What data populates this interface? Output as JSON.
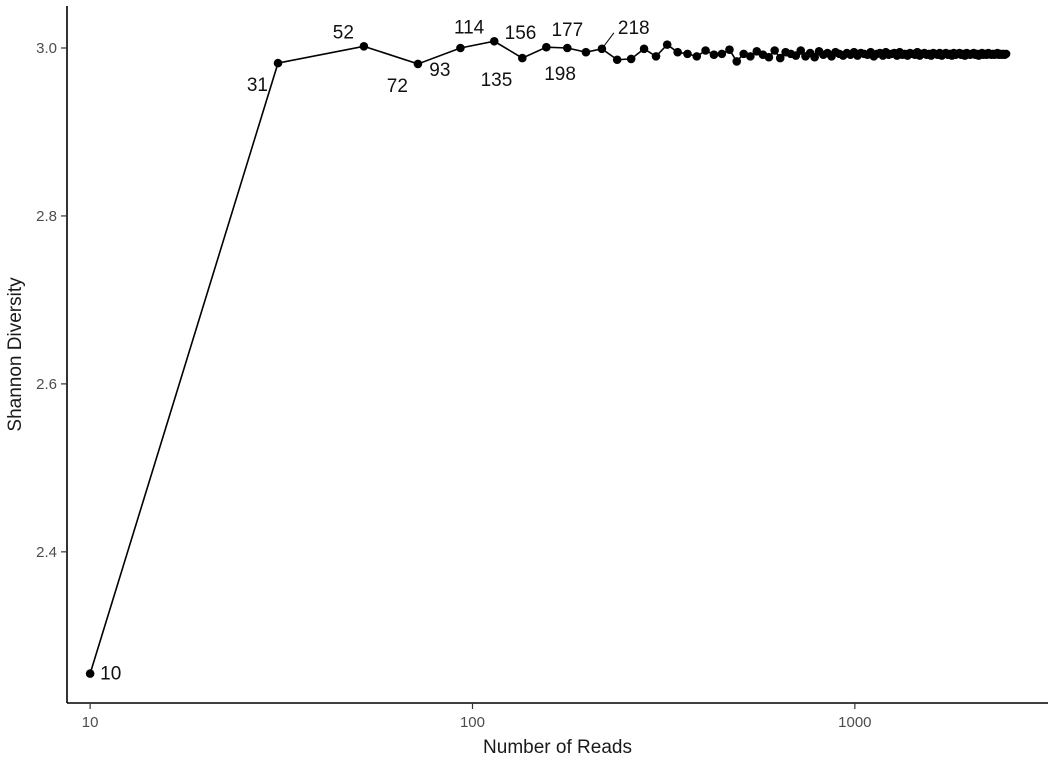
{
  "chart_data": {
    "type": "line",
    "title": "",
    "xlabel": "Number of Reads",
    "ylabel": "Shannon Diversity",
    "x_scale": "log",
    "xlim": [
      8.7,
      3200
    ],
    "ylim": [
      2.22,
      3.05
    ],
    "grid": false,
    "legend": "none",
    "x_ticks": [
      10,
      100,
      1000
    ],
    "x_tick_labels": [
      "10",
      "100",
      "1000"
    ],
    "y_ticks": [
      2.4,
      2.6,
      2.8,
      3.0
    ],
    "y_tick_labels": [
      "2.4",
      "2.6",
      "2.8",
      "3.0"
    ],
    "series": [
      {
        "x": [
          10,
          31,
          52,
          72,
          93,
          114,
          135,
          156,
          177,
          198,
          218,
          239,
          260,
          281,
          302,
          323,
          344,
          365,
          386,
          407,
          428,
          449,
          470,
          491,
          512,
          533,
          554,
          575,
          596,
          617,
          638,
          659,
          680,
          701,
          722,
          743,
          764,
          785,
          806,
          827,
          848,
          869,
          890,
          911,
          932,
          953,
          974,
          995,
          1016,
          1037,
          1058,
          1079,
          1100,
          1121,
          1142,
          1163,
          1184,
          1205,
          1226,
          1247,
          1268,
          1289,
          1310,
          1331,
          1352,
          1373,
          1394,
          1415,
          1436,
          1457,
          1478,
          1499,
          1520,
          1541,
          1562,
          1583,
          1604,
          1625,
          1646,
          1667,
          1688,
          1709,
          1730,
          1751,
          1772,
          1793,
          1814,
          1835,
          1856,
          1877,
          1898,
          1919,
          1940,
          1961,
          1982,
          2003,
          2024,
          2045,
          2066,
          2087,
          2108,
          2129,
          2150,
          2171,
          2192,
          2213,
          2234,
          2255,
          2276,
          2297,
          2318,
          2339,
          2360,
          2381,
          2402,
          2423,
          2444,
          2465,
          2486
        ],
        "values": [
          2.255,
          2.982,
          3.002,
          2.981,
          3.0,
          3.008,
          2.988,
          3.001,
          3.0,
          2.995,
          2.999,
          2.986,
          2.987,
          2.999,
          2.99,
          3.004,
          2.995,
          2.993,
          2.99,
          2.997,
          2.992,
          2.993,
          2.998,
          2.984,
          2.993,
          2.99,
          2.996,
          2.992,
          2.989,
          2.997,
          2.988,
          2.995,
          2.993,
          2.991,
          2.997,
          2.99,
          2.994,
          2.989,
          2.996,
          2.992,
          2.994,
          2.99,
          2.995,
          2.993,
          2.991,
          2.994,
          2.992,
          2.995,
          2.991,
          2.994,
          2.993,
          2.992,
          2.995,
          2.99,
          2.993,
          2.994,
          2.991,
          2.995,
          2.992,
          2.993,
          2.994,
          2.991,
          2.995,
          2.992,
          2.993,
          2.991,
          2.994,
          2.993,
          2.992,
          2.995,
          2.991,
          2.993,
          2.994,
          2.992,
          2.993,
          2.991,
          2.994,
          2.993,
          2.992,
          2.994,
          2.991,
          2.993,
          2.994,
          2.992,
          2.993,
          2.991,
          2.994,
          2.992,
          2.993,
          2.994,
          2.992,
          2.993,
          2.991,
          2.994,
          2.993,
          2.992,
          2.993,
          2.994,
          2.992,
          2.993,
          2.991,
          2.993,
          2.994,
          2.992,
          2.993,
          2.992,
          2.994,
          2.993,
          2.992,
          2.993,
          2.992,
          2.993,
          2.994,
          2.992,
          2.993,
          2.992,
          2.993,
          2.992,
          2.993
        ]
      }
    ],
    "annotations": [
      {
        "label": "10",
        "x": 10,
        "y": 2.255,
        "pos": "right"
      },
      {
        "label": "31",
        "x": 31,
        "y": 2.982,
        "pos": "below-left"
      },
      {
        "label": "52",
        "x": 52,
        "y": 3.002,
        "pos": "above-left"
      },
      {
        "label": "72",
        "x": 72,
        "y": 2.981,
        "pos": "below-left"
      },
      {
        "label": "93",
        "x": 93,
        "y": 3.0,
        "pos": "below-left"
      },
      {
        "label": "114",
        "x": 114,
        "y": 3.008,
        "pos": "above-left"
      },
      {
        "label": "135",
        "x": 135,
        "y": 2.988,
        "pos": "below-left"
      },
      {
        "label": "156",
        "x": 156,
        "y": 3.001,
        "pos": "above-left"
      },
      {
        "label": "177",
        "x": 177,
        "y": 3.0,
        "pos": "above"
      },
      {
        "label": "198",
        "x": 198,
        "y": 2.995,
        "pos": "below-left"
      },
      {
        "label": "218",
        "x": 218,
        "y": 2.999,
        "pos": "above-right-leader"
      }
    ]
  }
}
